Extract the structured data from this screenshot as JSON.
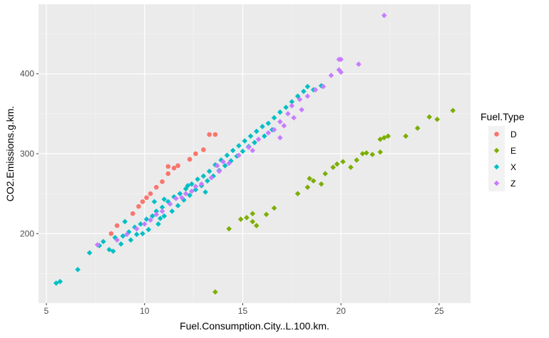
{
  "chart_data": {
    "type": "scatter",
    "xlabel": "Fuel.Consumption.City..L.100.km.",
    "ylabel": "CO2.Emissions.g.km.",
    "xlim": [
      4.6,
      26.6
    ],
    "ylim": [
      113,
      487
    ],
    "x_ticks": [
      5,
      10,
      15,
      20,
      25
    ],
    "y_ticks": [
      200,
      300,
      400
    ],
    "x_minor": [
      7.5,
      12.5,
      17.5,
      22.5
    ],
    "y_minor": [
      150,
      250,
      350,
      450
    ],
    "grid": true,
    "legend": {
      "title": "Fuel.Type",
      "placement": "right"
    },
    "series": [
      {
        "name": "D",
        "color": "#F8766D",
        "shape": "circle",
        "points": [
          [
            8.3,
            200
          ],
          [
            8.6,
            210
          ],
          [
            9.4,
            225
          ],
          [
            9.7,
            234
          ],
          [
            9.9,
            240
          ],
          [
            10.1,
            245
          ],
          [
            10.3,
            250
          ],
          [
            10.6,
            258
          ],
          [
            10.9,
            265
          ],
          [
            11.2,
            275
          ],
          [
            11.5,
            282
          ],
          [
            11.2,
            284
          ],
          [
            11.7,
            285
          ],
          [
            12.3,
            293
          ],
          [
            12.6,
            300
          ],
          [
            13.0,
            305
          ],
          [
            13.3,
            324
          ],
          [
            13.6,
            324
          ]
        ]
      },
      {
        "name": "E",
        "color": "#7CAE00",
        "shape": "diamond",
        "points": [
          [
            13.6,
            127
          ],
          [
            14.3,
            206
          ],
          [
            14.9,
            218
          ],
          [
            15.2,
            220
          ],
          [
            15.5,
            225
          ],
          [
            15.5,
            215
          ],
          [
            15.7,
            210
          ],
          [
            16.2,
            224
          ],
          [
            16.6,
            232
          ],
          [
            17.8,
            250
          ],
          [
            18.3,
            258
          ],
          [
            18.4,
            269
          ],
          [
            18.6,
            266
          ],
          [
            19.0,
            262
          ],
          [
            19.2,
            275
          ],
          [
            19.6,
            283
          ],
          [
            19.8,
            287
          ],
          [
            20.1,
            290
          ],
          [
            20.5,
            283
          ],
          [
            20.8,
            292
          ],
          [
            21.1,
            300
          ],
          [
            21.3,
            301
          ],
          [
            21.6,
            299
          ],
          [
            22.0,
            302
          ],
          [
            22.0,
            318
          ],
          [
            22.2,
            320
          ],
          [
            22.4,
            322
          ],
          [
            23.3,
            322
          ],
          [
            23.9,
            332
          ],
          [
            24.5,
            346
          ],
          [
            24.9,
            343
          ],
          [
            25.7,
            354
          ]
        ]
      },
      {
        "name": "X",
        "color": "#00BFC4",
        "shape": "diamond",
        "points": [
          [
            5.5,
            138
          ],
          [
            5.7,
            140
          ],
          [
            6.6,
            155
          ],
          [
            7.2,
            176
          ],
          [
            7.7,
            185
          ],
          [
            7.9,
            190
          ],
          [
            8.2,
            180
          ],
          [
            8.5,
            195
          ],
          [
            8.9,
            197
          ],
          [
            9.2,
            202
          ],
          [
            9.5,
            208
          ],
          [
            9.8,
            212
          ],
          [
            10.1,
            218
          ],
          [
            10.4,
            222
          ],
          [
            10.6,
            228
          ],
          [
            10.9,
            233
          ],
          [
            11.2,
            240
          ],
          [
            11.5,
            246
          ],
          [
            11.8,
            250
          ],
          [
            12.1,
            256
          ],
          [
            12.4,
            262
          ],
          [
            12.7,
            268
          ],
          [
            13.0,
            272
          ],
          [
            13.3,
            278
          ],
          [
            13.6,
            286
          ],
          [
            13.9,
            292
          ],
          [
            14.2,
            298
          ],
          [
            14.5,
            304
          ],
          [
            14.8,
            310
          ],
          [
            15.1,
            316
          ],
          [
            15.4,
            322
          ],
          [
            15.7,
            328
          ],
          [
            16.0,
            334
          ],
          [
            16.3,
            338
          ],
          [
            16.6,
            345
          ],
          [
            16.9,
            352
          ],
          [
            17.2,
            358
          ],
          [
            17.5,
            365
          ],
          [
            17.8,
            372
          ],
          [
            18.1,
            378
          ],
          [
            18.3,
            384
          ],
          [
            18.6,
            380
          ],
          [
            19.0,
            385
          ],
          [
            8.8,
            187
          ],
          [
            9.3,
            192
          ],
          [
            9.9,
            200
          ],
          [
            10.2,
            205
          ],
          [
            10.7,
            212
          ],
          [
            11.0,
            222
          ],
          [
            11.4,
            228
          ],
          [
            11.7,
            235
          ],
          [
            12.0,
            242
          ],
          [
            12.3,
            248
          ],
          [
            12.6,
            255
          ],
          [
            12.9,
            260
          ],
          [
            13.2,
            266
          ],
          [
            13.5,
            272
          ],
          [
            13.8,
            279
          ],
          [
            14.1,
            285
          ],
          [
            14.4,
            291
          ],
          [
            14.7,
            297
          ],
          [
            15.0,
            303
          ],
          [
            15.3,
            309
          ],
          [
            15.6,
            314
          ],
          [
            16.1,
            322
          ],
          [
            16.5,
            330
          ],
          [
            9.0,
            215
          ],
          [
            10.5,
            240
          ],
          [
            12.2,
            260
          ],
          [
            11.0,
            243
          ],
          [
            8.4,
            178
          ],
          [
            9.6,
            199
          ],
          [
            10.8,
            219
          ],
          [
            13.1,
            252
          ]
        ]
      },
      {
        "name": "Z",
        "color": "#C77CFF",
        "shape": "diamond",
        "points": [
          [
            7.6,
            186
          ],
          [
            8.6,
            192
          ],
          [
            9.1,
            199
          ],
          [
            9.6,
            206
          ],
          [
            10.0,
            212
          ],
          [
            10.3,
            217
          ],
          [
            10.9,
            228
          ],
          [
            11.3,
            237
          ],
          [
            11.9,
            245
          ],
          [
            12.1,
            250
          ],
          [
            12.4,
            253
          ],
          [
            12.9,
            262
          ],
          [
            13.4,
            270
          ],
          [
            13.8,
            278
          ],
          [
            14.3,
            288
          ],
          [
            14.8,
            298
          ],
          [
            15.3,
            308
          ],
          [
            15.8,
            318
          ],
          [
            16.3,
            326
          ],
          [
            16.9,
            340
          ],
          [
            17.3,
            350
          ],
          [
            17.5,
            360
          ],
          [
            17.9,
            368
          ],
          [
            18.3,
            372
          ],
          [
            18.7,
            380
          ],
          [
            19.1,
            384
          ],
          [
            19.5,
            398
          ],
          [
            19.9,
            405
          ],
          [
            19.9,
            418
          ],
          [
            20.0,
            418
          ],
          [
            20.0,
            402
          ],
          [
            20.9,
            412
          ],
          [
            22.2,
            473
          ],
          [
            17.1,
            335
          ],
          [
            17.6,
            345
          ],
          [
            18.0,
            355
          ],
          [
            16.6,
            330
          ],
          [
            16.9,
            320
          ],
          [
            14.0,
            290
          ],
          [
            12.6,
            259
          ],
          [
            11.6,
            244
          ],
          [
            10.6,
            224
          ],
          [
            15.5,
            304
          ],
          [
            13.7,
            285
          ]
        ]
      }
    ]
  }
}
